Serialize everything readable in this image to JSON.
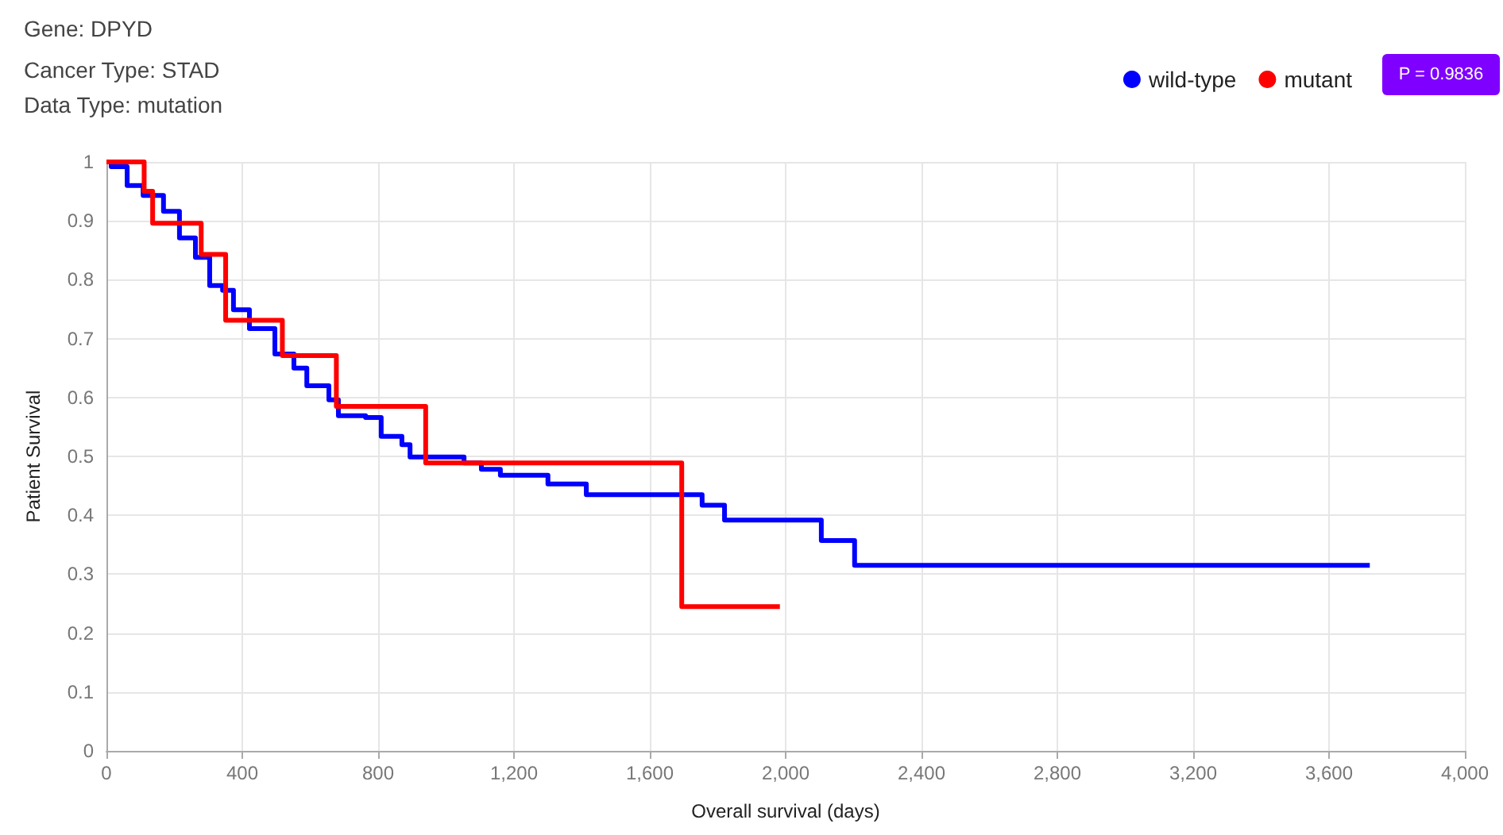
{
  "chart_data": {
    "type": "step",
    "title": "Gene: DPYD",
    "subtitle": "Cancer Type: STAD\nData Type: mutation",
    "xlabel": "Overall survival (days)",
    "ylabel": "Patient Survival",
    "annotations": [
      "P = 0.9836"
    ],
    "series": [
      {
        "name": "wild-type",
        "color": "#0000ff",
        "x": [
          0,
          14,
          61,
          108,
          168,
          215,
          262,
          304,
          342,
          374,
          421,
          496,
          552,
          590,
          655,
          683,
          763,
          809,
          870,
          894,
          1053,
          1104,
          1160,
          1300,
          1413,
          1754,
          1820,
          2105,
          2203,
          3720
        ],
        "values": [
          1,
          0.992,
          0.96,
          0.943,
          0.916,
          0.871,
          0.838,
          0.79,
          0.782,
          0.749,
          0.717,
          0.674,
          0.65,
          0.62,
          0.596,
          0.569,
          0.566,
          0.534,
          0.52,
          0.499,
          0.489,
          0.478,
          0.468,
          0.453,
          0.435,
          0.417,
          0.392,
          0.357,
          0.315,
          0.315
        ]
      },
      {
        "name": "mutant",
        "color": "#ff0000",
        "x": [
          0,
          111,
          136,
          279,
          351,
          518,
          677,
          940,
          1694,
          1983
        ],
        "values": [
          1,
          0.95,
          0.896,
          0.843,
          0.731,
          0.671,
          0.585,
          0.489,
          0.245,
          0.245
        ]
      }
    ],
    "xlim": [
      0,
      4000
    ],
    "xticks": [
      0,
      400,
      800,
      {
        "value": 1200,
        "label": "1,200"
      },
      {
        "value": 1600,
        "label": "1,600"
      },
      {
        "value": 2000,
        "label": "2,000"
      },
      {
        "value": 2400,
        "label": "2,400"
      },
      {
        "value": 2800,
        "label": "2,800"
      },
      {
        "value": 3200,
        "label": "3,200"
      },
      {
        "value": 3600,
        "label": "3,600"
      },
      {
        "value": 4000,
        "label": "4,000"
      }
    ],
    "ylim": [
      0,
      1
    ],
    "yticks": [
      0,
      0.1,
      0.2,
      0.3,
      0.4,
      0.5,
      0.6,
      0.7,
      0.8,
      0.9,
      1
    ],
    "grid": true,
    "legend": "top right",
    "marker": "none",
    "line_style": "solid"
  }
}
